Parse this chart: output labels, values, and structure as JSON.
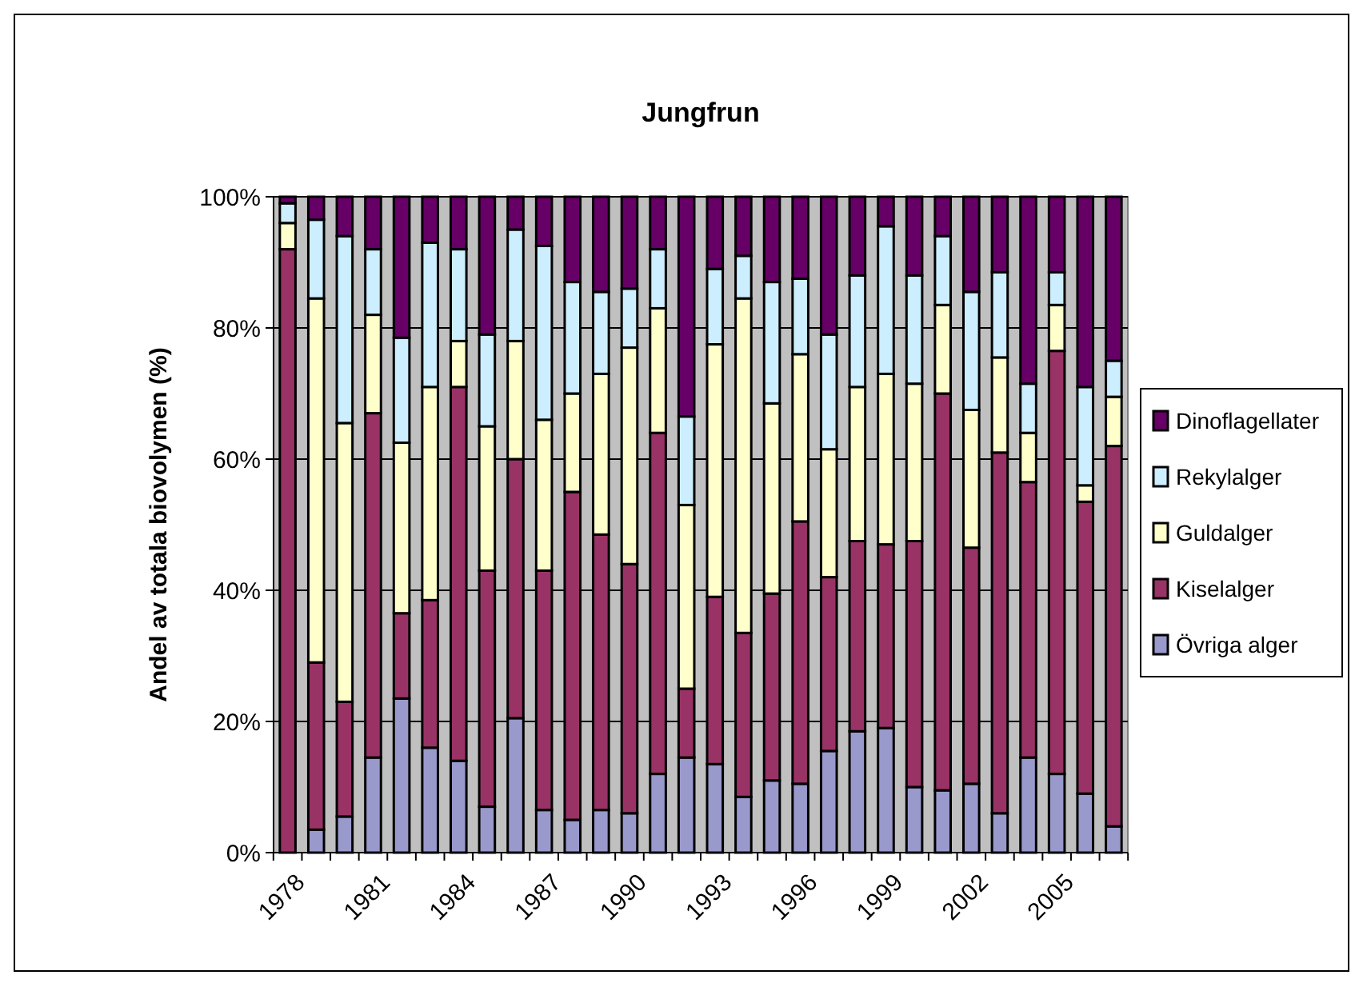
{
  "chart_data": {
    "type": "bar",
    "stacked": true,
    "title": "Jungfrun",
    "ylabel": "Andel av totala biovolymen (%)",
    "categories": [
      "1978",
      null,
      null,
      "1981",
      null,
      null,
      "1984",
      null,
      null,
      "1987",
      null,
      null,
      "1990",
      null,
      null,
      "1993",
      null,
      null,
      "1996",
      null,
      null,
      "1999",
      null,
      null,
      "2002",
      null,
      null,
      "2005",
      null,
      null
    ],
    "series": [
      {
        "name": "Övriga alger",
        "color": "#9999cc",
        "values": [
          null,
          3.5,
          5.5,
          14.5,
          23.5,
          16,
          14,
          7,
          20.5,
          6.5,
          5,
          6.5,
          6,
          12,
          14.5,
          13.5,
          8.5,
          11,
          10.5,
          15.5,
          18.5,
          19,
          10,
          9.5,
          10.5,
          6,
          14.5,
          12,
          9,
          4
        ]
      },
      {
        "name": "Kiselalger",
        "color": "#993366",
        "values": [
          92,
          25.5,
          17.5,
          52.5,
          13,
          22.5,
          57,
          36,
          39.5,
          36.5,
          50,
          42,
          38,
          52,
          10.5,
          25.5,
          25,
          28.5,
          40,
          26.5,
          29,
          28,
          37.5,
          60.5,
          36,
          55,
          42,
          64.5,
          44.5,
          58
        ]
      },
      {
        "name": "Guldalger",
        "color": "#ffffcc",
        "values": [
          4,
          55.5,
          42.5,
          15,
          26,
          32.5,
          7,
          22,
          18,
          23,
          15,
          24.5,
          33,
          19,
          28,
          38.5,
          51,
          29,
          25.5,
          19.5,
          23.5,
          26,
          24,
          13.5,
          21,
          14.5,
          7.5,
          7,
          2.5,
          7.5
        ]
      },
      {
        "name": "Rekylalger",
        "color": "#cceeff",
        "values": [
          3,
          12,
          28.5,
          10,
          16,
          22,
          14,
          14,
          17,
          26.5,
          17,
          12.5,
          9,
          9,
          13.5,
          11.5,
          6.5,
          18.5,
          11.5,
          17.5,
          17,
          22.5,
          16.5,
          10.5,
          18,
          13,
          7.5,
          5,
          15,
          5.5
        ]
      },
      {
        "name": "Dinoflagellater",
        "color": "#660066",
        "values": [
          1,
          3.5,
          6,
          8,
          21.5,
          7,
          8,
          21,
          5,
          7.5,
          13,
          14.5,
          14,
          8,
          33.5,
          11,
          9,
          13,
          12.5,
          21,
          12,
          4.5,
          12,
          6,
          14.5,
          11.5,
          28.5,
          11.5,
          29,
          25
        ]
      }
    ],
    "ylim": [
      0,
      100
    ],
    "yticks": [
      {
        "value": 0,
        "label": "0%"
      },
      {
        "value": 20,
        "label": "20%"
      },
      {
        "value": 40,
        "label": "40%"
      },
      {
        "value": 60,
        "label": "60%"
      },
      {
        "value": 80,
        "label": "80%"
      },
      {
        "value": 100,
        "label": "100%"
      }
    ],
    "grid": "y",
    "legend": "right"
  }
}
